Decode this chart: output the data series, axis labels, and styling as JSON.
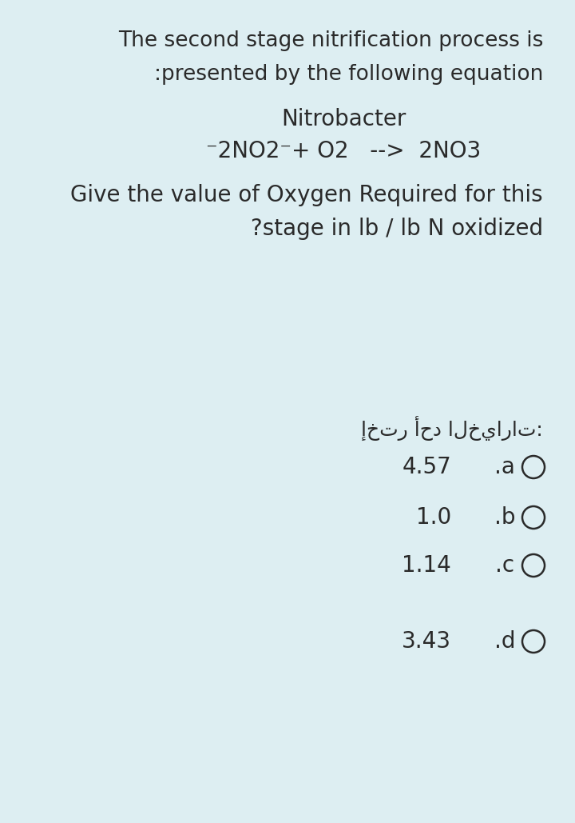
{
  "bg_color": "#ddeef2",
  "text_color": "#2a2a2a",
  "title_line1": "The second stage nitrification process is",
  "title_line2": ":presented by the following equation",
  "nitrobacter": "Nitrobacter",
  "equation": "⁻2NO2⁻+ O2   -->  2NO3",
  "question_line1": "Give the value of Oxygen Required for this",
  "question_line2": "?stage in lb / lb N oxidized",
  "arabic_label": "إختر أحد الخيارات:",
  "options": [
    {
      "label": ".a",
      "value": "4.57"
    },
    {
      "label": ".b",
      "value": "1.0"
    },
    {
      "label": ".c",
      "value": "1.14"
    },
    {
      "label": ".d",
      "value": "3.43"
    }
  ],
  "font_size_title": 19,
  "font_size_equation": 20,
  "font_size_question": 20,
  "font_size_options": 20,
  "font_size_arabic": 18
}
